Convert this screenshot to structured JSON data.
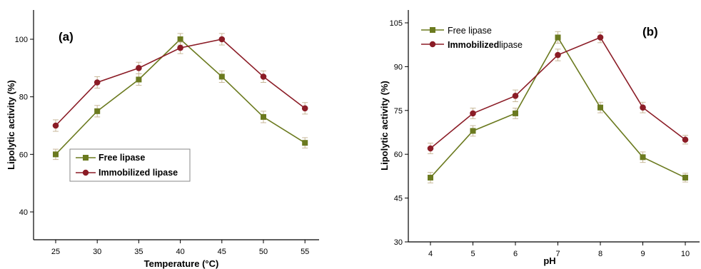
{
  "chart_data": [
    {
      "type": "line",
      "panel_label": "(a)",
      "xlabel": "Temperature (°C)",
      "ylabel": "Lipolytic activity (%)",
      "x": [
        25,
        30,
        35,
        40,
        45,
        50,
        55
      ],
      "xticks": [
        "25",
        "30",
        "35",
        "40",
        "45",
        "50",
        "55"
      ],
      "yticks": [
        "40",
        "60",
        "80",
        "100"
      ],
      "ylim": [
        30,
        110
      ],
      "xlim": [
        22,
        57
      ],
      "legend_position": "lower-left",
      "series": [
        {
          "name": "Free lipase",
          "values": [
            60,
            75,
            86,
            100,
            87,
            73,
            64
          ],
          "error": [
            1.8,
            2,
            2,
            2,
            2,
            2,
            1.8
          ],
          "color": "#6b7a1f",
          "marker": "square"
        },
        {
          "name": "Immobilized lipase",
          "values": [
            70,
            85,
            90,
            97,
            100,
            87,
            76
          ],
          "error": [
            2,
            2,
            2,
            2,
            2,
            2,
            2
          ],
          "color": "#8b1c26",
          "marker": "circle"
        }
      ]
    },
    {
      "type": "line",
      "panel_label": "(b)",
      "xlabel": "pH",
      "ylabel": "Lipolytic activity (%)",
      "x": [
        4,
        5,
        6,
        7,
        8,
        9,
        10
      ],
      "xticks": [
        "4",
        "5",
        "6",
        "7",
        "8",
        "9",
        "10"
      ],
      "yticks": [
        "30",
        "45",
        "60",
        "75",
        "90",
        "105"
      ],
      "ylim": [
        30,
        108
      ],
      "xlim": [
        3.2,
        10.5
      ],
      "legend_position": "top-left",
      "series": [
        {
          "name": "Free lipase",
          "values": [
            52,
            68,
            74,
            100,
            76,
            59,
            52
          ],
          "error": [
            1.8,
            1.8,
            1.8,
            2,
            1.8,
            1.8,
            1.5
          ],
          "color": "#6b7a1f",
          "marker": "square"
        },
        {
          "name": "Immobilized lipase",
          "values": [
            62,
            74,
            80,
            94,
            100,
            76,
            65
          ],
          "error": [
            1.8,
            1.8,
            2,
            2,
            1.8,
            1.8,
            1.5
          ],
          "color": "#8b1c26",
          "marker": "circle"
        }
      ]
    }
  ],
  "legend_b": {
    "free_label": "Free lipase",
    "imm_label_bold": "Immobilized",
    "imm_label_rest": "lipase"
  },
  "colors": {
    "free": "#6b7a1f",
    "immobilized": "#8b1c26",
    "error": "#c8b89a"
  }
}
